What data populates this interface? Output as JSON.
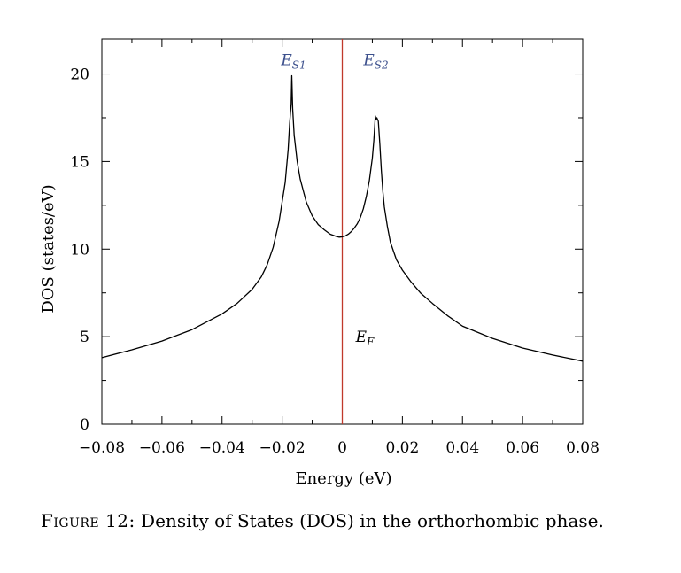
{
  "chart_data": {
    "type": "line",
    "xlabel": "Energy (eV)",
    "ylabel": "DOS (states/eV)",
    "xlim": [
      -0.08,
      0.08
    ],
    "ylim": [
      0,
      22
    ],
    "xticks": [
      -0.08,
      -0.06,
      -0.04,
      -0.02,
      0,
      0.02,
      0.04,
      0.06,
      0.08
    ],
    "xtick_labels": [
      "−0.08",
      "−0.06",
      "−0.04",
      "−0.02",
      "0",
      "0.02",
      "0.04",
      "0.06",
      "0.08"
    ],
    "yticks": [
      0,
      5,
      10,
      15,
      20
    ],
    "ytick_labels": [
      "0",
      "5",
      "10",
      "15",
      "20"
    ],
    "grid": false,
    "series": [
      {
        "color": "#000000",
        "x": [
          -0.08,
          -0.07,
          -0.06,
          -0.05,
          -0.04,
          -0.035,
          -0.03,
          -0.027,
          -0.025,
          -0.023,
          -0.021,
          -0.019,
          -0.018,
          -0.0175,
          -0.017,
          -0.0168,
          -0.0165,
          -0.016,
          -0.015,
          -0.014,
          -0.012,
          -0.01,
          -0.008,
          -0.006,
          -0.004,
          -0.002,
          -0.001,
          0,
          0.001,
          0.002,
          0.003,
          0.004,
          0.005,
          0.006,
          0.007,
          0.008,
          0.009,
          0.01,
          0.0105,
          0.011,
          0.0112,
          0.0115,
          0.012,
          0.0125,
          0.013,
          0.0135,
          0.014,
          0.015,
          0.016,
          0.018,
          0.02,
          0.023,
          0.026,
          0.03,
          0.035,
          0.04,
          0.05,
          0.06,
          0.07,
          0.08
        ],
        "y": [
          3.8,
          4.25,
          4.75,
          5.4,
          6.3,
          6.9,
          7.7,
          8.4,
          9.1,
          10.1,
          11.6,
          13.8,
          15.7,
          17.2,
          18.3,
          19.9,
          18.0,
          16.5,
          15.0,
          14.0,
          12.7,
          11.9,
          11.4,
          11.1,
          10.85,
          10.72,
          10.68,
          10.7,
          10.75,
          10.85,
          11.0,
          11.2,
          11.45,
          11.8,
          12.3,
          13.0,
          13.9,
          15.2,
          16.2,
          17.6,
          17.4,
          17.5,
          17.3,
          16.0,
          14.5,
          13.3,
          12.4,
          11.3,
          10.4,
          9.4,
          8.8,
          8.1,
          7.5,
          6.9,
          6.2,
          5.6,
          4.9,
          4.35,
          3.95,
          3.6
        ]
      }
    ],
    "vline": {
      "x": 0,
      "color": "#c0392b"
    },
    "annotations": [
      {
        "base": "E",
        "sub": "S1",
        "x": -0.0162,
        "y": 20.5,
        "color": "#3b4f8c"
      },
      {
        "base": "E",
        "sub": "S2",
        "x": 0.0112,
        "y": 20.5,
        "color": "#3b4f8c"
      },
      {
        "base": "E",
        "sub": "F",
        "x": 0.0075,
        "y": 4.7,
        "color": "#000000"
      }
    ]
  },
  "caption": {
    "figure_label": "Figure 12:",
    "text": " Density of States (DOS) in the orthorhombic phase."
  }
}
